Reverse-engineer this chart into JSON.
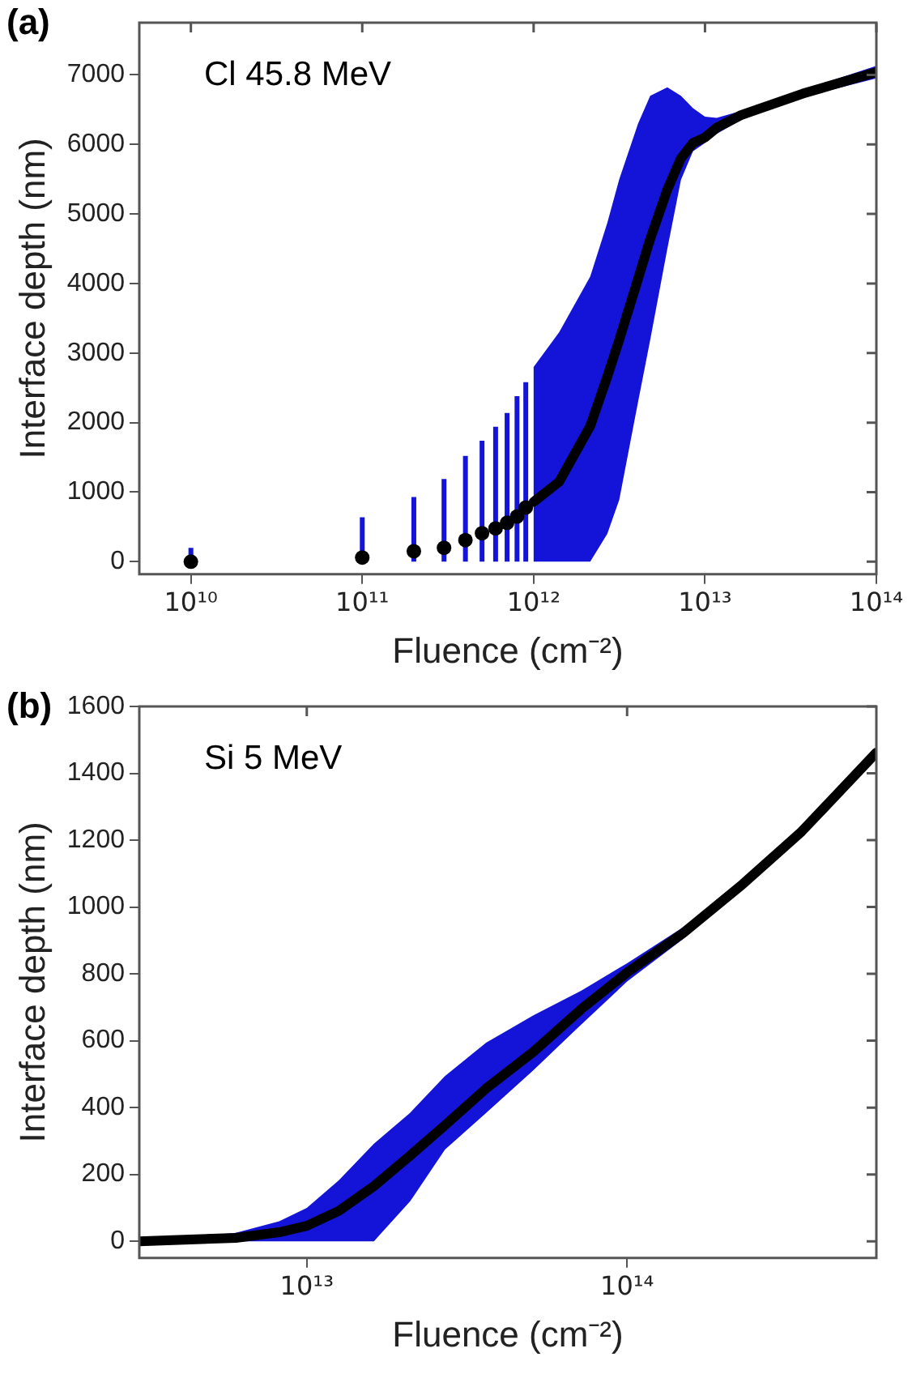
{
  "chart_data": [
    {
      "type": "scatter",
      "title": "(a)",
      "xlabel": "Fluence (cm⁻²)",
      "ylabel": "Interface depth (nm)",
      "annotations": [
        "Cl 45.8 MeV"
      ],
      "log": "x",
      "grid": false,
      "legend": false,
      "xlim": [
        5000000000.0,
        100000000000000.0
      ],
      "xticks": [
        {
          "value": 10000000000.0,
          "label": "10¹⁰"
        },
        {
          "value": 100000000000.0,
          "label": "10¹¹"
        },
        {
          "value": 1000000000000.0,
          "label": "10¹²"
        },
        {
          "value": 10000000000000.0,
          "label": "10¹³"
        },
        {
          "value": 100000000000000.0,
          "label": "10¹⁴"
        }
      ],
      "ylim": [
        -180,
        7750
      ],
      "yticks": [
        0,
        1000,
        2000,
        3000,
        4000,
        5000,
        6000,
        7000
      ],
      "series": [
        {
          "color": "#000000",
          "marker": "circle",
          "x": [
            10000000000.0,
            100000000000.0,
            200000000000.0,
            300000000000.0,
            400000000000.0,
            500000000000.0,
            600000000000.0,
            700000000000.0,
            800000000000.0,
            900000000000.0
          ],
          "values": [
            0,
            60,
            150,
            200,
            310,
            410,
            480,
            560,
            650,
            780
          ],
          "errors": [
            [
              0,
              200
            ],
            [
              0,
              640
            ],
            [
              0,
              930
            ],
            [
              0,
              1190
            ],
            [
              0,
              1520
            ],
            [
              0,
              1740
            ],
            [
              0,
              1940
            ],
            [
              0,
              2140
            ],
            [
              0,
              2380
            ],
            [
              0,
              2580
            ]
          ]
        },
        {
          "type": "line",
          "color": "#000000",
          "marker": "none",
          "line_style": "solid",
          "x": [
            1000000000000.0,
            1410000000000.0,
            2140000000000.0,
            2690000000000.0,
            3160000000000.0,
            4070000000000.0,
            4790000000000.0,
            6030000000000.0,
            7240000000000.0,
            8510000000000.0,
            10000000000000.0,
            11700000000000.0,
            16200000000000.0,
            37200000000000.0,
            100000000000000.0
          ],
          "values": [
            860,
            1150,
            1950,
            2660,
            3190,
            4070,
            4640,
            5350,
            5800,
            6020,
            6100,
            6240,
            6420,
            6730,
            7040
          ],
          "lower": [
            0,
            0,
            0,
            400,
            890,
            2300,
            3190,
            4500,
            5490,
            5900,
            6020,
            6150,
            6350,
            6680,
            6950
          ],
          "upper": [
            2800,
            3300,
            4100,
            4870,
            5500,
            6300,
            6700,
            6820,
            6700,
            6520,
            6400,
            6380,
            6480,
            6780,
            7130
          ]
        }
      ]
    },
    {
      "type": "line",
      "title": "(b)",
      "xlabel": "Fluence (cm⁻²)",
      "ylabel": "Interface depth (nm)",
      "annotations": [
        "Si 5 MeV"
      ],
      "log": "x",
      "grid": false,
      "legend": false,
      "xlim": [
        3000000000000.0,
        600000000000000.0
      ],
      "xticks": [
        {
          "value": 10000000000000.0,
          "label": "10¹³"
        },
        {
          "value": 100000000000000.0,
          "label": "10¹⁴"
        }
      ],
      "ylim": [
        -50,
        1600
      ],
      "yticks": [
        0,
        200,
        400,
        600,
        800,
        1000,
        1200,
        1400,
        1600
      ],
      "series": [
        {
          "color": "#000000",
          "marker": "none",
          "line_style": "solid",
          "x": [
            3000000000000.0,
            6000000000000.0,
            8200000000000.0,
            10000000000000.0,
            12600000000000.0,
            16200000000000.0,
            21000000000000.0,
            27000000000000.0,
            36300000000000.0,
            51000000000000.0,
            72000000000000.0,
            100000000000000.0,
            150000000000000.0,
            230000000000000.0,
            350000000000000.0,
            600000000000000.0
          ],
          "values": [
            0,
            10,
            27,
            46,
            91,
            165,
            256,
            347,
            457,
            567,
            695,
            804,
            923,
            1069,
            1225,
            1462
          ],
          "lower": [
            0,
            0,
            0,
            0,
            0,
            0,
            119,
            274,
            384,
            512,
            649,
            777,
            905,
            1060,
            1215,
            1450
          ],
          "upper": [
            0,
            25,
            60,
            100,
            183,
            292,
            384,
            494,
            594,
            676,
            750,
            832,
            940,
            1080,
            1235,
            1475
          ]
        }
      ]
    }
  ]
}
